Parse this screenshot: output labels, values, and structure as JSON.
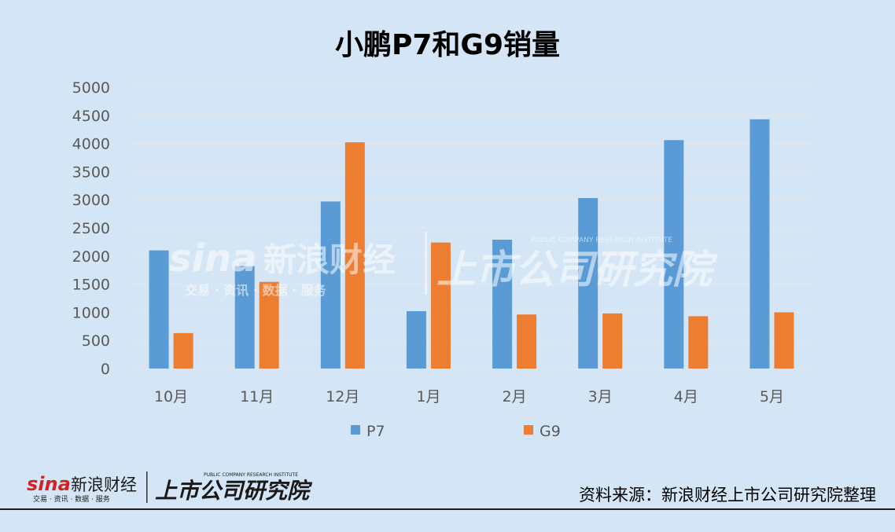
{
  "title": "小鹏P7和G9销量",
  "source": "资料来源：新浪财经上市公司研究院整理",
  "logo": {
    "sina": "sina",
    "brand": "新浪财经",
    "tagline": "交易 · 资讯 · 数据 · 服务",
    "institute": "上市公司研究院",
    "institute_en": "PUBLIC COMPANY RESEARCH INSTITUTE"
  },
  "colors": {
    "P7": "#5b9bd5",
    "G9": "#ed7d31",
    "background": "#d4e6f5",
    "grid": "#e6e6e6"
  },
  "chart_data": {
    "type": "bar",
    "title": "小鹏P7和G9销量",
    "categories": [
      "10月",
      "11月",
      "12月",
      "1月",
      "2月",
      "3月",
      "4月",
      "5月"
    ],
    "series": [
      {
        "name": "P7",
        "values": [
          2100,
          1820,
          2970,
          1020,
          2290,
          3030,
          4060,
          4430
        ]
      },
      {
        "name": "G9",
        "values": [
          630,
          1540,
          4020,
          2240,
          960,
          980,
          930,
          1000
        ]
      }
    ],
    "ylim": [
      0,
      5000
    ],
    "yticks": [
      0,
      500,
      1000,
      1500,
      2000,
      2500,
      3000,
      3500,
      4000,
      4500,
      5000
    ],
    "grid": true,
    "legend": "bottom",
    "xlabel": "",
    "ylabel": ""
  }
}
